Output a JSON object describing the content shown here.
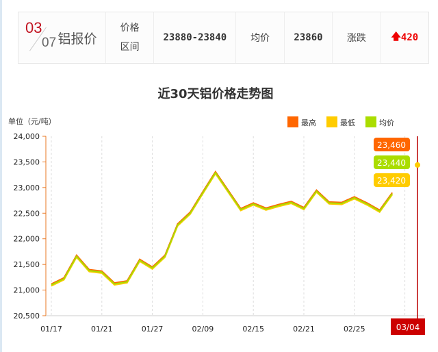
{
  "header": {
    "month": "03",
    "day": "07",
    "title": "铝报价",
    "range_label_1": "价格",
    "range_label_2": "区间",
    "range_value": "23880-23840",
    "avg_label": "均价",
    "avg_value": "23860",
    "change_label": "涨跌",
    "change_value": "420",
    "change_icon": "arrow-up-icon"
  },
  "chart_data": {
    "type": "line",
    "title": "近30天铝价格走势图",
    "ylabel": "单位（元/吨）",
    "ylim": [
      20500,
      24000
    ],
    "yticks": [
      "24,000",
      "23,500",
      "23,000",
      "22,500",
      "22,000",
      "21,500",
      "21,000",
      "20,500"
    ],
    "xticks": [
      {
        "i": 0,
        "label": "01/17"
      },
      {
        "i": 4,
        "label": "01/21"
      },
      {
        "i": 8,
        "label": "01/27"
      },
      {
        "i": 12,
        "label": "02/09"
      },
      {
        "i": 16,
        "label": "02/15"
      },
      {
        "i": 20,
        "label": "02/21"
      },
      {
        "i": 24,
        "label": "02/25"
      }
    ],
    "highlight_label": "03/04",
    "legend_position": "top-right",
    "series": [
      {
        "name": "最高",
        "color": "#ff6600",
        "values": [
          21120,
          21240,
          21680,
          21400,
          21370,
          21140,
          21180,
          21600,
          21450,
          21680,
          22290,
          22520,
          22920,
          23310,
          22950,
          22590,
          22700,
          22600,
          22670,
          22730,
          22610,
          22950,
          22720,
          22710,
          22820,
          22700,
          22560,
          22900,
          null,
          23460
        ]
      },
      {
        "name": "最低",
        "color": "#ffcc00",
        "values": [
          21080,
          21200,
          21640,
          21360,
          21330,
          21100,
          21140,
          21560,
          21410,
          21640,
          22250,
          22480,
          22880,
          23270,
          22910,
          22550,
          22660,
          22560,
          22630,
          22690,
          22570,
          22910,
          22680,
          22670,
          22780,
          22660,
          22520,
          22860,
          null,
          23420
        ]
      },
      {
        "name": "均价",
        "color": "#aadd00",
        "values": [
          21100,
          21220,
          21660,
          21380,
          21350,
          21120,
          21160,
          21580,
          21430,
          21660,
          22270,
          22500,
          22900,
          23290,
          22930,
          22570,
          22680,
          22580,
          22650,
          22710,
          22590,
          22930,
          22700,
          22690,
          22800,
          22680,
          22540,
          22880,
          null,
          23440
        ]
      }
    ],
    "tooltips": [
      "23,460",
      "23,440",
      "23,420"
    ],
    "grid": "vertical-dashed"
  }
}
